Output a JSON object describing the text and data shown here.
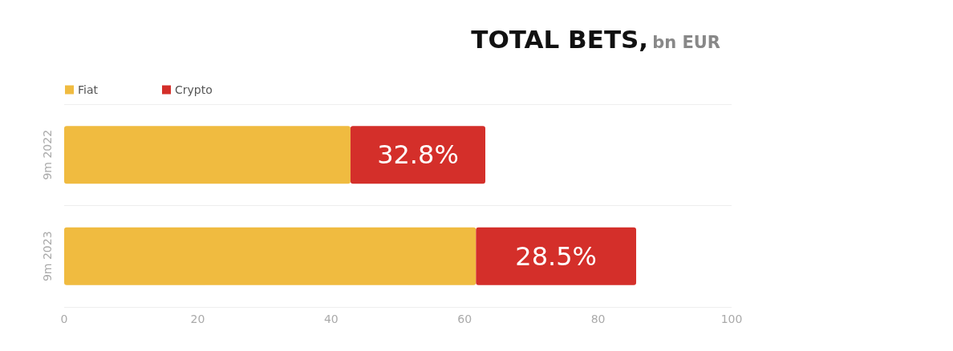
{
  "chart_data": {
    "type": "bar",
    "orientation": "horizontal",
    "stacked": true,
    "title": "TOTAL BETS,",
    "subtitle": "bn EUR",
    "categories": [
      "9m 2022",
      "9m 2023"
    ],
    "series": [
      {
        "name": "Fiat",
        "color": "#f0bb40",
        "values": [
          42.9,
          61.7
        ]
      },
      {
        "name": "Crypto",
        "color": "#d42f2a",
        "values": [
          20.2,
          24.0
        ]
      }
    ],
    "annotations": [
      "32.8%",
      "28.5%"
    ],
    "xlim": [
      0,
      100
    ],
    "xticks": [
      0,
      20,
      40,
      60,
      80,
      100
    ],
    "grid": "y",
    "legend": "top left"
  }
}
